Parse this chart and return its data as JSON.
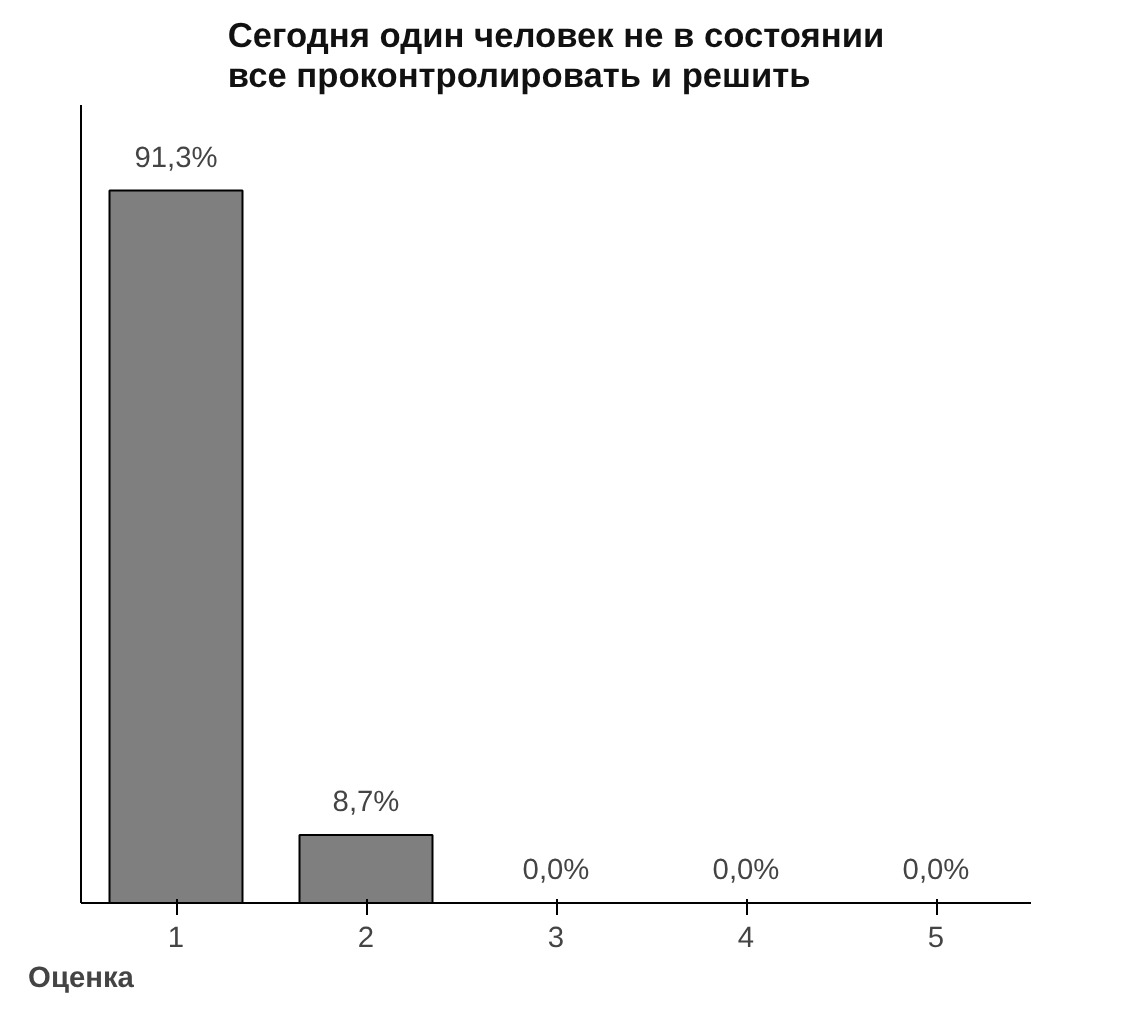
{
  "chart_data": {
    "type": "bar",
    "title": "Сегодня один человек не в состоянии все проконтролировать и решить",
    "xlabel": "Оценка",
    "categories": [
      "1",
      "2",
      "3",
      "4",
      "5"
    ],
    "values": [
      91.3,
      8.7,
      0.0,
      0.0,
      0.0
    ],
    "value_labels": [
      "91,3%",
      "8,7%",
      "0,0%",
      "0,0%",
      "0,0%"
    ],
    "color": "#7f7f7f",
    "grid": false,
    "tick_labels": "x"
  }
}
